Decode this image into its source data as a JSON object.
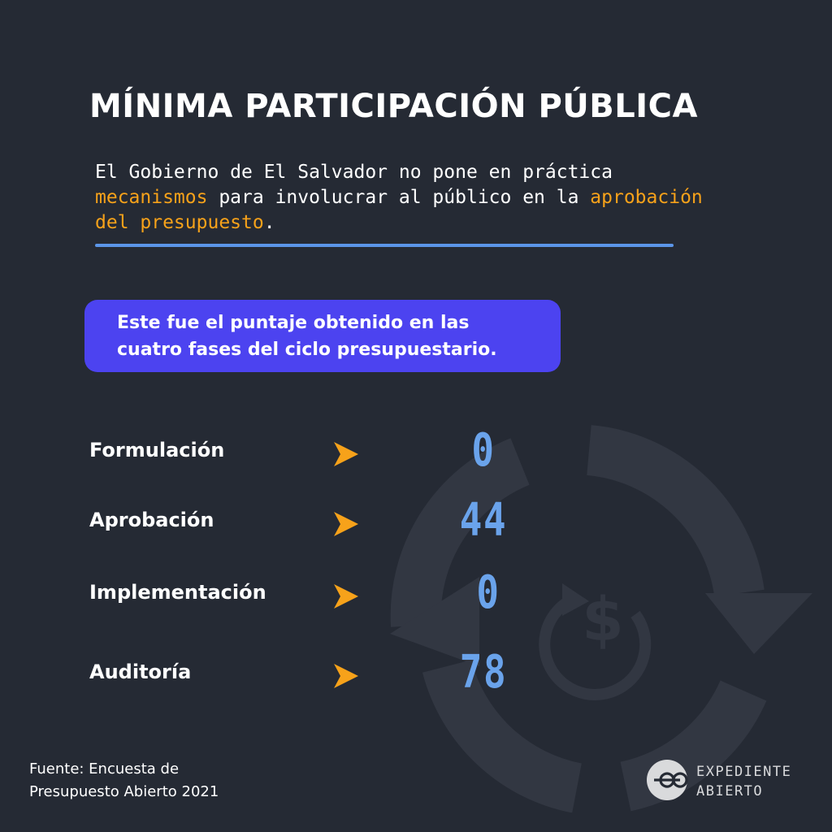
{
  "header": {
    "title": "MÍNIMA PARTICIPACIÓN PÚBLICA",
    "intro_part1": "El Gobierno de El Salvador no pone en práctica ",
    "intro_highlight1": "mecanismos",
    "intro_part2": " para involucrar al público en la ",
    "intro_highlight2": "aprobación del presupuesto",
    "intro_end": "."
  },
  "callout": {
    "text": "Este fue el puntaje obtenido en las cuatro fases del ciclo presupuestario."
  },
  "phases": [
    {
      "label": "Formulación",
      "score": "0"
    },
    {
      "label": "Aprobación",
      "score": "44"
    },
    {
      "label": "Implementación",
      "score": "0"
    },
    {
      "label": "Auditoría",
      "score": "78"
    }
  ],
  "footer": {
    "source_line1": "Fuente: Encuesta de",
    "source_line2": "Presupuesto Abierto 2021",
    "brand_line1": "EXPEDIENTE",
    "brand_line2": "ABIERTO"
  },
  "colors": {
    "background": "#252a34",
    "accent_orange": "#f7a21a",
    "accent_blue": "#6aa3eb",
    "callout_purple": "#4c43f0"
  },
  "icons": [
    "budget-cycle-icon",
    "dollar-icon",
    "chevron-right-icon",
    "expediente-abierto-logo"
  ]
}
